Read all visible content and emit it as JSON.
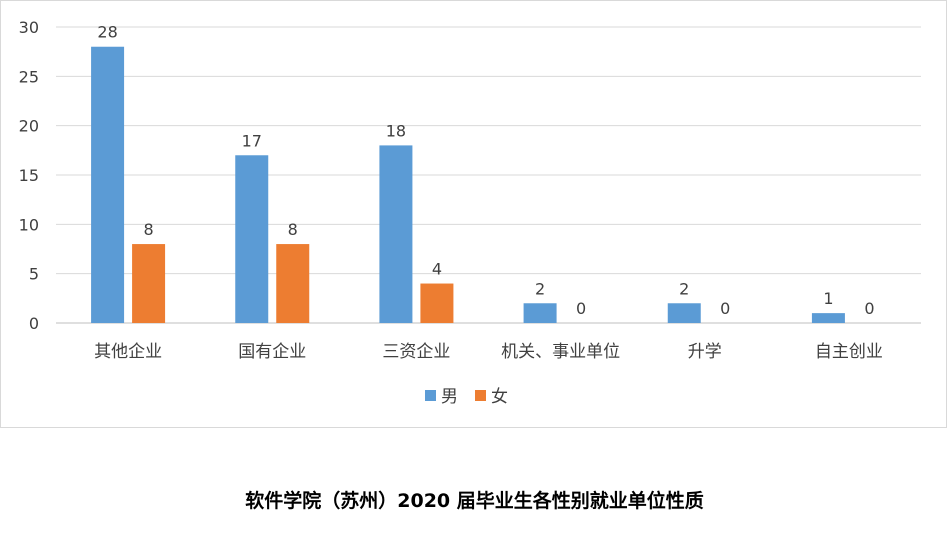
{
  "chart_data": {
    "type": "bar",
    "categories": [
      "其他企业",
      "国有企业",
      "三资企业",
      "机关、事业单位",
      "升学",
      "自主创业"
    ],
    "series": [
      {
        "name": "男",
        "values": [
          28,
          17,
          18,
          2,
          2,
          1
        ],
        "color": "#5b9bd5"
      },
      {
        "name": "女",
        "values": [
          8,
          8,
          4,
          0,
          0,
          0
        ],
        "color": "#ed7d31"
      }
    ],
    "ylim": [
      0,
      30
    ],
    "yticks": [
      0,
      5,
      10,
      15,
      20,
      25,
      30
    ],
    "grid": true,
    "legend_position": "bottom"
  },
  "caption": "软件学院（苏州）2020 届毕业生各性别就业单位性质"
}
